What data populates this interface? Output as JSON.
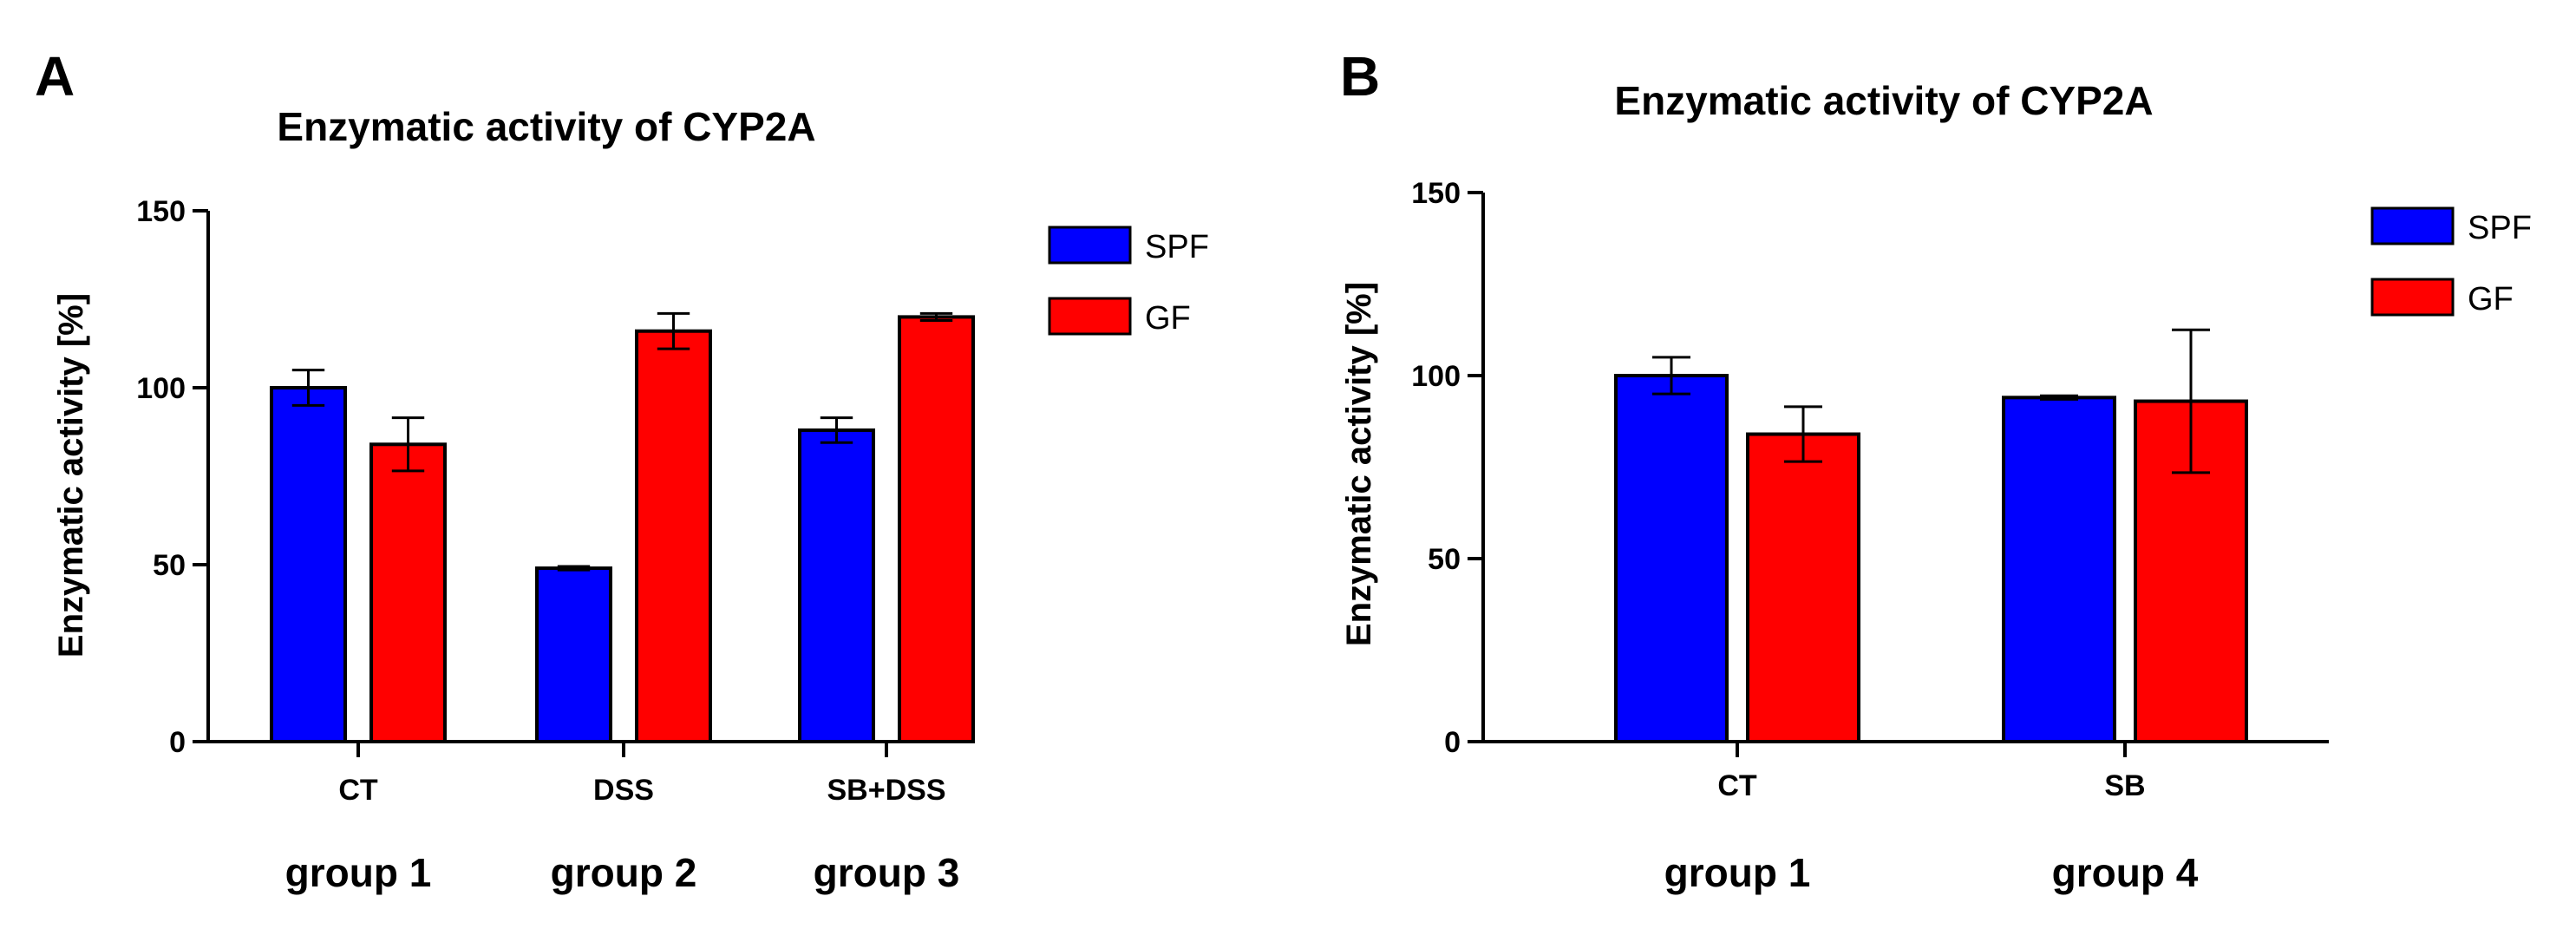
{
  "colors": {
    "SPF": "#0000ff",
    "GF": "#ff0000",
    "axis": "#000000"
  },
  "chart_data": [
    {
      "panel": "A",
      "type": "bar",
      "title": "Enzymatic activity of CYP2A",
      "ylabel": "Enzymatic activity [%]",
      "xlabel": "",
      "ylim": [
        0,
        150
      ],
      "yticks": [
        0,
        50,
        100,
        150
      ],
      "categories": [
        "CT",
        "DSS",
        "SB+DSS"
      ],
      "groups": [
        "group 1",
        "group 2",
        "group 3"
      ],
      "legend": [
        "SPF",
        "GF"
      ],
      "series": [
        {
          "name": "SPF",
          "values": [
            100,
            49,
            88
          ],
          "errors": [
            5,
            0.5,
            3.5
          ]
        },
        {
          "name": "GF",
          "values": [
            84,
            116,
            120
          ],
          "errors": [
            7.5,
            5,
            1
          ]
        }
      ]
    },
    {
      "panel": "B",
      "type": "bar",
      "title": "Enzymatic activity of CYP2A",
      "ylabel": "Enzymatic activity [%]",
      "xlabel": "",
      "ylim": [
        0,
        150
      ],
      "yticks": [
        0,
        50,
        100,
        150
      ],
      "categories": [
        "CT",
        "SB"
      ],
      "groups": [
        "group 1",
        "group 4"
      ],
      "legend": [
        "SPF",
        "GF"
      ],
      "series": [
        {
          "name": "SPF",
          "values": [
            100,
            94
          ],
          "errors": [
            5,
            0.5
          ]
        },
        {
          "name": "GF",
          "values": [
            84,
            93
          ],
          "errors": [
            7.5,
            19.5
          ]
        }
      ]
    }
  ]
}
